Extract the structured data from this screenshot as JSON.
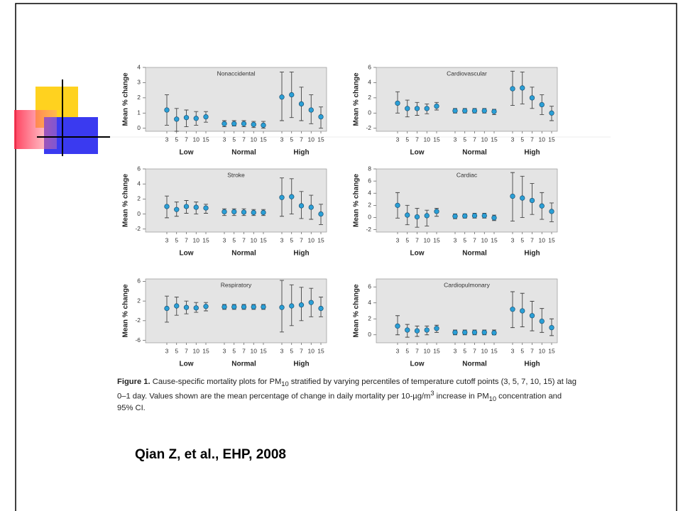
{
  "chart_data": [
    {
      "type": "errorbar",
      "title": "Nonaccidental",
      "ylabel": "Mean % change",
      "categories": [
        "3",
        "5",
        "7",
        "10",
        "15",
        "3",
        "5",
        "7",
        "10",
        "15",
        "3",
        "5",
        "7",
        "10",
        "15"
      ],
      "groups": [
        "Low",
        "Normal",
        "High"
      ],
      "values": [
        1.2,
        0.6,
        0.7,
        0.65,
        0.75,
        0.3,
        0.3,
        0.3,
        0.25,
        0.2,
        2.05,
        2.2,
        1.6,
        1.2,
        0.75
      ],
      "ci_low": [
        0.2,
        -0.2,
        0.1,
        0.2,
        0.4,
        0.1,
        0.15,
        0.1,
        0.05,
        0,
        0.5,
        0.7,
        0.5,
        0.3,
        0
      ],
      "ci_high": [
        2.2,
        1.3,
        1.2,
        1.1,
        1.1,
        0.5,
        0.5,
        0.5,
        0.45,
        0.45,
        3.7,
        3.7,
        2.7,
        2.2,
        1.4
      ],
      "ylim": [
        -0.2,
        4
      ],
      "yticks": [
        0,
        1,
        2,
        3,
        4
      ],
      "color": "#2a9fd6"
    },
    {
      "type": "errorbar",
      "title": "Cardiovascular",
      "ylabel": "Mean % change",
      "categories": [
        "3",
        "5",
        "7",
        "10",
        "15",
        "3",
        "5",
        "7",
        "10",
        "15",
        "3",
        "5",
        "7",
        "10",
        "15"
      ],
      "groups": [
        "Low",
        "Normal",
        "High"
      ],
      "values": [
        1.3,
        0.6,
        0.6,
        0.6,
        0.9,
        0.3,
        0.3,
        0.3,
        0.3,
        0.2,
        3.2,
        3.3,
        2,
        1.1,
        0
      ],
      "ci_low": [
        0,
        -0.5,
        -0.3,
        -0.1,
        0.4,
        0,
        0,
        0,
        0,
        -0.2,
        1,
        1.2,
        0.6,
        -0.2,
        -1
      ],
      "ci_high": [
        2.8,
        1.7,
        1.4,
        1.2,
        1.4,
        0.6,
        0.6,
        0.6,
        0.6,
        0.5,
        5.5,
        5.4,
        3.4,
        2.4,
        0.9
      ],
      "ylim": [
        -2.4,
        6
      ],
      "yticks": [
        -2,
        0,
        2,
        4,
        6
      ],
      "color": "#2a9fd6"
    },
    {
      "type": "errorbar",
      "title": "Stroke",
      "ylabel": "Mean % change",
      "categories": [
        "3",
        "5",
        "7",
        "10",
        "15",
        "3",
        "5",
        "7",
        "10",
        "15",
        "3",
        "5",
        "7",
        "10",
        "15"
      ],
      "groups": [
        "Low",
        "Normal",
        "High"
      ],
      "values": [
        1,
        0.6,
        1,
        0.9,
        0.8,
        0.3,
        0.3,
        0.25,
        0.2,
        0.2,
        2.2,
        2.3,
        1.1,
        0.9,
        0
      ],
      "ci_low": [
        -0.5,
        -0.3,
        0.1,
        0,
        0.1,
        -0.2,
        -0.2,
        -0.2,
        -0.2,
        -0.2,
        -0.3,
        0,
        -0.6,
        -0.7,
        -1.4
      ],
      "ci_high": [
        2.4,
        1.6,
        1.8,
        1.6,
        1.3,
        0.7,
        0.7,
        0.7,
        0.6,
        0.6,
        4.8,
        4.7,
        3,
        2.5,
        1.3
      ],
      "ylim": [
        -2.4,
        6
      ],
      "yticks": [
        -2,
        0,
        2,
        4,
        6
      ],
      "color": "#2a9fd6"
    },
    {
      "type": "errorbar",
      "title": "Cardiac",
      "ylabel": "Mean % change",
      "categories": [
        "3",
        "5",
        "7",
        "10",
        "15",
        "3",
        "5",
        "7",
        "10",
        "15",
        "3",
        "5",
        "7",
        "10",
        "15"
      ],
      "groups": [
        "Low",
        "Normal",
        "High"
      ],
      "values": [
        2,
        0.4,
        0.1,
        0.3,
        1,
        0.2,
        0.25,
        0.3,
        0.3,
        -0.05,
        3.5,
        3.2,
        2.8,
        1.9,
        1
      ],
      "ci_low": [
        -0.1,
        -1.2,
        -1.6,
        -1.4,
        0.2,
        -0.2,
        -0.1,
        -0.1,
        -0.1,
        -0.5,
        -0.6,
        0,
        0.5,
        -0.3,
        -0.7
      ],
      "ci_high": [
        4.1,
        2,
        1.5,
        1.2,
        1.5,
        0.6,
        0.6,
        0.7,
        0.7,
        0.4,
        7.4,
        6.8,
        5.6,
        4.1,
        2.4
      ],
      "ylim": [
        -2.4,
        8
      ],
      "yticks": [
        -2,
        0,
        2,
        4,
        6,
        8
      ],
      "color": "#2a9fd6"
    },
    {
      "type": "errorbar",
      "title": "Respiratory",
      "ylabel": "Mean % change",
      "categories": [
        "3",
        "5",
        "7",
        "10",
        "15",
        "3",
        "5",
        "7",
        "10",
        "15",
        "3",
        "5",
        "7",
        "10",
        "15"
      ],
      "groups": [
        "Low",
        "Normal",
        "High"
      ],
      "values": [
        0.5,
        1,
        0.7,
        0.6,
        0.9,
        0.8,
        0.8,
        0.8,
        0.8,
        0.8,
        0.7,
        1,
        1.2,
        1.7,
        0.5
      ],
      "ci_low": [
        -2.3,
        -0.9,
        -0.6,
        -0.3,
        0,
        0.3,
        0.3,
        0.3,
        0.3,
        0.3,
        -4.3,
        -3,
        -2,
        -1.2,
        -1.2
      ],
      "ci_high": [
        3,
        2.8,
        2,
        1.7,
        1.7,
        1.3,
        1.3,
        1.3,
        1.3,
        1.3,
        6.2,
        5.3,
        4.8,
        4.6,
        2.8
      ],
      "ylim": [
        -6.5,
        6.5
      ],
      "yticks": [
        -6,
        -2,
        2,
        6
      ],
      "color": "#2a9fd6"
    },
    {
      "type": "errorbar",
      "title": "Cardiopulmonary",
      "ylabel": "Mean % change",
      "categories": [
        "3",
        "5",
        "7",
        "10",
        "15",
        "3",
        "5",
        "7",
        "10",
        "15",
        "3",
        "5",
        "7",
        "10",
        "15"
      ],
      "groups": [
        "Low",
        "Normal",
        "High"
      ],
      "values": [
        1.1,
        0.6,
        0.5,
        0.6,
        0.8,
        0.3,
        0.3,
        0.3,
        0.3,
        0.25,
        3.2,
        3,
        2.4,
        1.7,
        0.9
      ],
      "ci_low": [
        0,
        -0.3,
        -0.2,
        0,
        0.3,
        0,
        0,
        0,
        0,
        0,
        0.9,
        1,
        0.5,
        0.3,
        -0.1
      ],
      "ci_high": [
        2.4,
        1.3,
        1.1,
        1.1,
        1.2,
        0.6,
        0.6,
        0.6,
        0.6,
        0.6,
        5.4,
        5.2,
        4.2,
        3.3,
        2
      ],
      "ylim": [
        -1,
        7
      ],
      "yticks": [
        0,
        2,
        4,
        6
      ],
      "color": "#2a9fd6"
    }
  ],
  "caption": {
    "label": "Figure 1.",
    "segments": [
      " Cause-specific mortality plots for PM",
      "10",
      " stratified by varying percentiles of temperature cutoff points (3, 5, 7, 10, 15) at lag 0–1 day. Values shown are the mean percentage of change in daily mortality per 10-µg/m",
      "3",
      " increase in PM",
      "10",
      " concentration and 95% CI."
    ]
  },
  "citation": "Qian Z, et al., EHP, 2008"
}
